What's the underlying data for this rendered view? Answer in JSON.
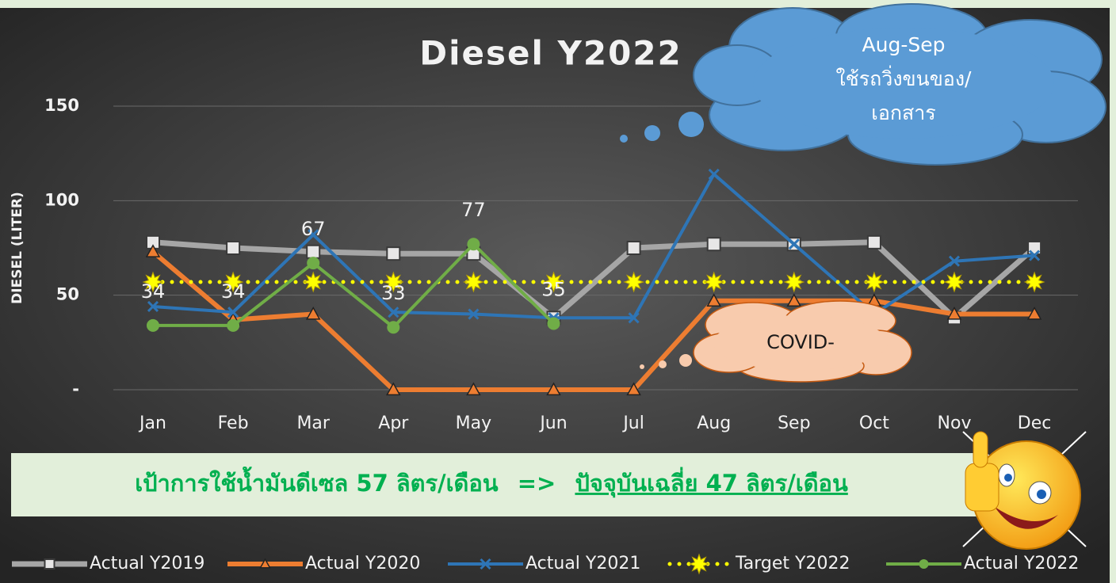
{
  "chart_data": {
    "type": "line",
    "title": "Diesel Y2022",
    "ylabel": "DIESEL (LITER)",
    "categories": [
      "Jan",
      "Feb",
      "Mar",
      "Apr",
      "May",
      "Jun",
      "Jul",
      "Aug",
      "Sep",
      "Oct",
      "Nov",
      "Dec"
    ],
    "ylim": [
      0,
      150
    ],
    "yticks": [
      {
        "value": 0,
        "label": "-"
      },
      50,
      100,
      150
    ],
    "grid": true,
    "legend": "bottom",
    "series": [
      {
        "name": "Actual Y2019",
        "color": "#a6a6a6",
        "marker": "square",
        "width": 7,
        "values": [
          78,
          75,
          73,
          72,
          72,
          38,
          75,
          77,
          77,
          78,
          38,
          75
        ]
      },
      {
        "name": "Actual Y2020",
        "color": "#ed7d31",
        "marker": "triangle",
        "width": 6,
        "values": [
          73,
          37,
          40,
          0,
          0,
          0,
          0,
          47,
          47,
          47,
          40,
          40
        ]
      },
      {
        "name": "Actual Y2021",
        "color": "#2e75b6",
        "marker": "x",
        "width": 4,
        "values": [
          44,
          41,
          82,
          41,
          40,
          38,
          38,
          114,
          77,
          40,
          68,
          71
        ]
      },
      {
        "name": "Target Y2022",
        "color": "#ffff00",
        "marker": "burst",
        "width": 5,
        "dash": "dotted",
        "values": [
          57,
          57,
          57,
          57,
          57,
          57,
          57,
          57,
          57,
          57,
          57,
          57
        ]
      },
      {
        "name": "Actual Y2022",
        "color": "#70ad47",
        "marker": "circle",
        "width": 4,
        "data_labels": true,
        "values": [
          34,
          34,
          67,
          33,
          77,
          35,
          null,
          null,
          null,
          null,
          null,
          null
        ]
      }
    ],
    "annotations": [
      {
        "lines": [
          "Aug-Sep",
          "ใช้รถวิ่งขนของ/",
          "เอกสาร"
        ]
      },
      {
        "lines": [
          "COVID-"
        ]
      }
    ]
  },
  "banner": {
    "target": "เป้าการใช้น้ำมันดีเซล 57 ลิตร/เดือน",
    "arrow": "=>",
    "current": "ปัจจุบันเฉลี่ย 47 ลิตร/เดือน"
  }
}
